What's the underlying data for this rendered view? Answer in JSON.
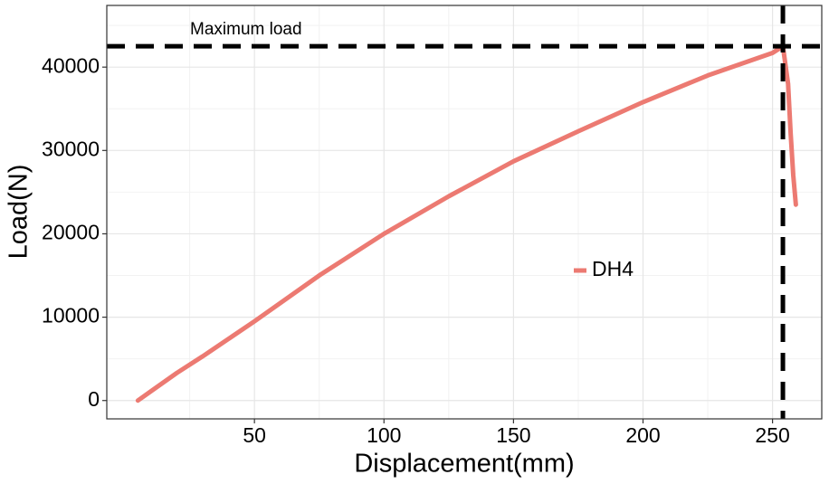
{
  "chart_data": {
    "type": "line",
    "x_label": "Displacement(mm)",
    "y_label": "Load(N)",
    "x": [
      5,
      10,
      20,
      30,
      50,
      75,
      100,
      125,
      150,
      175,
      200,
      225,
      250,
      254,
      256,
      257,
      258,
      259
    ],
    "series": [
      {
        "name": "DH4",
        "color": "#ec7a72",
        "values": [
          0,
          1100,
          3300,
          5300,
          9500,
          15000,
          20000,
          24500,
          28700,
          32300,
          35800,
          39000,
          41700,
          42500,
          38000,
          32000,
          27000,
          23500
        ]
      }
    ],
    "hline": 42500,
    "vline": 254,
    "annotation": "Maximum load",
    "xlim": [
      -7,
      269
    ],
    "ylim": [
      -2200,
      47400
    ],
    "xticks": [
      50,
      100,
      150,
      200,
      250
    ],
    "yticks": [
      0,
      10000,
      20000,
      30000,
      40000
    ],
    "grid": true
  }
}
